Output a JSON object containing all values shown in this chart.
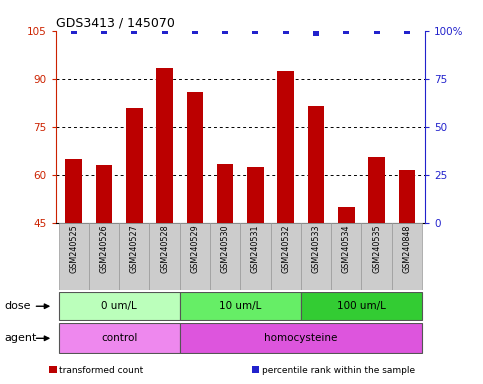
{
  "title": "GDS3413 / 145070",
  "samples": [
    "GSM240525",
    "GSM240526",
    "GSM240527",
    "GSM240528",
    "GSM240529",
    "GSM240530",
    "GSM240531",
    "GSM240532",
    "GSM240533",
    "GSM240534",
    "GSM240535",
    "GSM240848"
  ],
  "bar_values": [
    65.0,
    63.0,
    81.0,
    93.5,
    86.0,
    63.5,
    62.5,
    92.5,
    81.5,
    50.0,
    65.5,
    61.5
  ],
  "blue_dot_values": [
    100,
    100,
    100,
    100,
    100,
    100,
    100,
    100,
    99,
    100,
    100,
    100
  ],
  "bar_color": "#bb0000",
  "dot_color": "#2222cc",
  "ylim_left": [
    45,
    105
  ],
  "ylim_right": [
    0,
    100
  ],
  "yticks_left": [
    45,
    60,
    75,
    90,
    105
  ],
  "yticks_right": [
    0,
    25,
    50,
    75,
    100
  ],
  "yticklabels_right": [
    "0",
    "25",
    "50",
    "75",
    "100%"
  ],
  "grid_values": [
    60,
    75,
    90
  ],
  "dose_groups": [
    {
      "label": "0 um/L",
      "start": 0,
      "end": 3,
      "color": "#bbffbb"
    },
    {
      "label": "10 um/L",
      "start": 4,
      "end": 7,
      "color": "#66ee66"
    },
    {
      "label": "100 um/L",
      "start": 8,
      "end": 11,
      "color": "#33cc33"
    }
  ],
  "agent_groups": [
    {
      "label": "control",
      "start": 0,
      "end": 3,
      "color": "#ee88ee"
    },
    {
      "label": "homocysteine",
      "start": 4,
      "end": 11,
      "color": "#dd55dd"
    }
  ],
  "legend_items": [
    {
      "color": "#bb0000",
      "label": "transformed count"
    },
    {
      "color": "#2222cc",
      "label": "percentile rank within the sample"
    }
  ],
  "left_label_color": "#cc2200",
  "right_label_color": "#2222cc",
  "sample_bg_color": "#cccccc",
  "sample_border_color": "#999999",
  "background_color": "#ffffff"
}
